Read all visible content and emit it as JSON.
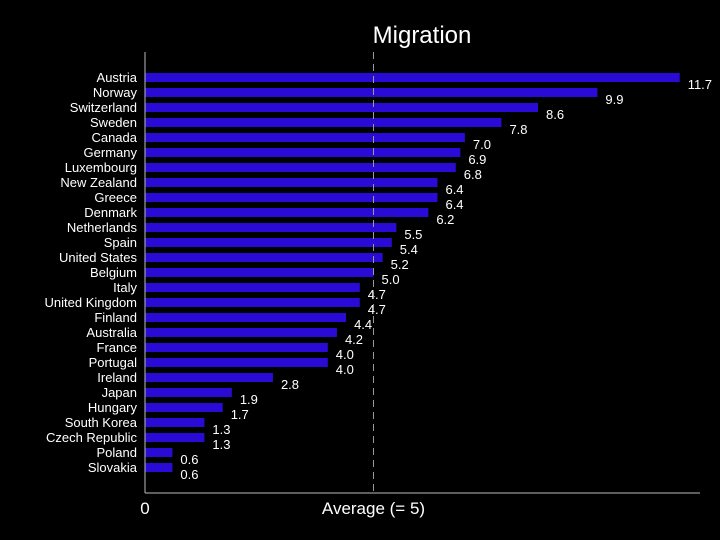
{
  "chart_data": {
    "type": "bar",
    "orientation": "horizontal",
    "title": "Migration",
    "categories": [
      "Austria",
      "Norway",
      "Switzerland",
      "Sweden",
      "Canada",
      "Germany",
      "Luxembourg",
      "New Zealand",
      "Greece",
      "Denmark",
      "Netherlands",
      "Spain",
      "United States",
      "Belgium",
      "Italy",
      "United Kingdom",
      "Finland",
      "Australia",
      "France",
      "Portugal",
      "Ireland",
      "Japan",
      "Hungary",
      "South Korea",
      "Czech Republic",
      "Poland",
      "Slovakia"
    ],
    "values": [
      11.7,
      9.9,
      8.6,
      7.8,
      7.0,
      6.9,
      6.8,
      6.4,
      6.4,
      6.2,
      5.5,
      5.4,
      5.2,
      5.0,
      4.7,
      4.7,
      4.4,
      4.2,
      4.0,
      4.0,
      2.8,
      1.9,
      1.7,
      1.3,
      1.3,
      0.6,
      0.6
    ],
    "value_labels": [
      "11.7",
      "9.9",
      "8.6",
      "7.8",
      "7.0",
      "6.9",
      "6.8",
      "6.4",
      "6.4",
      "6.2",
      "5.5",
      "5.4",
      "5.2",
      "5.0",
      "4.7",
      "4.7",
      "4.4",
      "4.2",
      "4.0",
      "4.0",
      "2.8",
      "1.9",
      "1.7",
      "1.3",
      "1.3",
      "0.6",
      "0.6"
    ],
    "xlim": [
      0,
      12
    ],
    "x_tick_label": "0",
    "reference_line": {
      "value": 5,
      "label": "Average (= 5)",
      "style": "dashed"
    },
    "bar_color": "#2a0bd6",
    "reference_line_color": "#9a9a9a",
    "axis_color": "#bbbbbb",
    "background_color": "#000000",
    "text_color": "#ffffff",
    "grid": false,
    "legend": "none"
  }
}
